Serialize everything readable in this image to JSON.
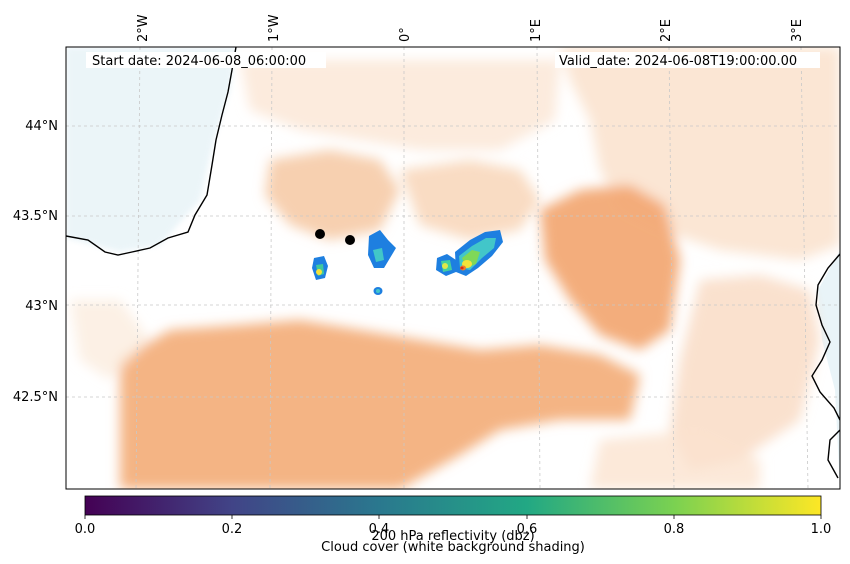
{
  "header": {
    "start_date": "Start date: 2024-06-08_06:00:00",
    "valid_date": "Valid_date: 2024-06-08T19:00:00.00"
  },
  "map": {
    "lon_labels": [
      "2°W",
      "1°W",
      "0°",
      "1°E",
      "2°E",
      "3°E"
    ],
    "lat_labels": [
      "44°N",
      "43.5°N",
      "43°N",
      "42.5°N"
    ],
    "extent": {
      "lon_min": -2.55,
      "lon_max": 3.35,
      "lat_min": 42.0,
      "lat_max": 44.4
    },
    "colors": {
      "cloud": "#f4b27e",
      "cloud_light": "#fbe3cf",
      "coast": "#000000",
      "sea_tint": "#d8ecf2",
      "grid": "#c8c8c8"
    },
    "stations": [
      {
        "name": "",
        "lon": -0.62,
        "lat": 43.39
      },
      {
        "name": "",
        "lon": -0.38,
        "lat": 43.36
      }
    ]
  },
  "colorbar": {
    "ticks": [
      "0.0",
      "0.2",
      "0.4",
      "0.6",
      "0.8",
      "1.0"
    ],
    "label_reflectivity": "200 hPa reflectivity (dbz)",
    "label_cloud": "Cloud cover (white background shading)",
    "colormap": [
      "#440154",
      "#414487",
      "#2a788e",
      "#22a884",
      "#7ad151",
      "#fde725"
    ]
  }
}
